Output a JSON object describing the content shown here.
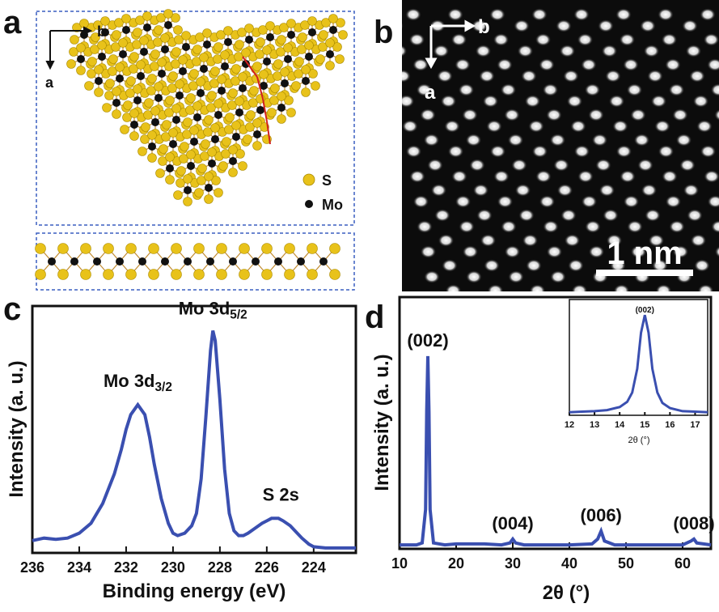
{
  "panels": {
    "a": {
      "label": "a",
      "axis_right": "b",
      "axis_down": "a",
      "legend": [
        {
          "symbol": "S",
          "color": "#e8c21a"
        },
        {
          "symbol": "Mo",
          "color": "#111111"
        }
      ]
    },
    "b": {
      "label": "b",
      "axis_right": "b",
      "axis_down": "a",
      "scalebar": "1 nm"
    },
    "c": {
      "label": "c"
    },
    "d": {
      "label": "d"
    }
  },
  "chart_data": [
    {
      "panel": "c",
      "type": "line",
      "xlabel": "Binding energy (eV)",
      "ylabel": "Intensity (a. u.)",
      "xlim": [
        236,
        222
      ],
      "xticks": [
        236,
        234,
        232,
        230,
        228,
        226,
        224
      ],
      "annotations": [
        {
          "text": "Mo 3d",
          "sub": "3/2",
          "x": 231.5
        },
        {
          "text": "Mo 3d",
          "sub": "5/2",
          "x": 228.3
        },
        {
          "text": "S 2s",
          "x": 225.4
        }
      ],
      "series": [
        {
          "color": "#3a4fb0",
          "x": [
            236,
            235.5,
            235,
            234.5,
            234,
            233.5,
            233,
            232.5,
            232.2,
            232,
            231.8,
            231.5,
            231.2,
            231,
            230.8,
            230.5,
            230.2,
            230,
            229.8,
            229.5,
            229.2,
            229,
            228.8,
            228.6,
            228.4,
            228.3,
            228.2,
            228,
            227.8,
            227.6,
            227.4,
            227.2,
            227,
            226.8,
            226.5,
            226.2,
            226,
            225.8,
            225.5,
            225.3,
            225,
            224.7,
            224.5,
            224.2,
            224,
            223.5,
            223,
            222.5,
            222.2
          ],
          "values": [
            0.05,
            0.06,
            0.055,
            0.06,
            0.08,
            0.12,
            0.2,
            0.32,
            0.42,
            0.5,
            0.56,
            0.6,
            0.56,
            0.47,
            0.36,
            0.22,
            0.12,
            0.08,
            0.07,
            0.08,
            0.11,
            0.16,
            0.3,
            0.55,
            0.82,
            0.9,
            0.86,
            0.62,
            0.34,
            0.16,
            0.09,
            0.07,
            0.07,
            0.08,
            0.1,
            0.12,
            0.13,
            0.14,
            0.14,
            0.13,
            0.11,
            0.08,
            0.06,
            0.035,
            0.025,
            0.02,
            0.02,
            0.02,
            0.02
          ]
        }
      ]
    },
    {
      "panel": "d",
      "type": "line",
      "xlabel": "2θ (°)",
      "ylabel": "Intensity (a. u.)",
      "xlim": [
        10,
        65
      ],
      "xticks": [
        10,
        20,
        30,
        40,
        50,
        60
      ],
      "annotations": [
        {
          "text": "(002)",
          "x": 15
        },
        {
          "text": "(004)",
          "x": 30
        },
        {
          "text": "(006)",
          "x": 45.6
        },
        {
          "text": "(008)",
          "x": 62
        }
      ],
      "series": [
        {
          "color": "#3a4fb0",
          "x": [
            10,
            12,
            13,
            14,
            14.6,
            14.8,
            15,
            15.2,
            15.4,
            16,
            18,
            20,
            25,
            28,
            29.5,
            30,
            30.5,
            32,
            40,
            44,
            45,
            45.6,
            46.2,
            48,
            55,
            60,
            61.5,
            62,
            62.5,
            65
          ],
          "values": [
            0.02,
            0.02,
            0.02,
            0.03,
            0.2,
            0.7,
            0.98,
            0.7,
            0.2,
            0.03,
            0.02,
            0.025,
            0.025,
            0.02,
            0.03,
            0.05,
            0.03,
            0.02,
            0.02,
            0.025,
            0.05,
            0.09,
            0.04,
            0.02,
            0.02,
            0.02,
            0.04,
            0.05,
            0.03,
            0.02
          ]
        }
      ],
      "inset": {
        "xlabel": "2θ (°)",
        "xlim": [
          12,
          17.5
        ],
        "xticks": [
          12,
          13,
          14,
          15,
          16,
          17
        ],
        "annotation": "(002)",
        "series": [
          {
            "color": "#3a4fb0",
            "x": [
              12,
              12.5,
              13,
              13.5,
              14,
              14.3,
              14.5,
              14.7,
              14.85,
              15,
              15.15,
              15.3,
              15.5,
              15.7,
              16,
              16.5,
              17,
              17.5
            ],
            "values": [
              0.03,
              0.035,
              0.04,
              0.05,
              0.08,
              0.13,
              0.22,
              0.45,
              0.8,
              0.97,
              0.8,
              0.45,
              0.22,
              0.12,
              0.07,
              0.04,
              0.035,
              0.03
            ]
          }
        ]
      }
    }
  ]
}
